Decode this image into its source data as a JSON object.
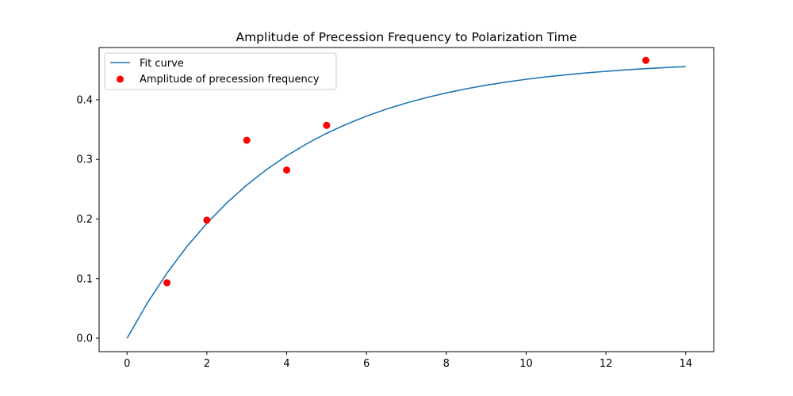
{
  "chart_data": {
    "type": "scatter",
    "title": "Amplitude of Precession Frequency to Polarization Time",
    "xlabel": "",
    "ylabel": "",
    "xlim": [
      -0.7,
      14.7
    ],
    "ylim": [
      -0.0225,
      0.4875
    ],
    "x_ticks": [
      0,
      2,
      4,
      6,
      8,
      10,
      12,
      14
    ],
    "x_tick_labels": [
      "0",
      "2",
      "4",
      "6",
      "8",
      "10",
      "12",
      "14"
    ],
    "y_ticks": [
      0.0,
      0.1,
      0.2,
      0.3,
      0.4
    ],
    "y_tick_labels": [
      "0.0",
      "0.1",
      "0.2",
      "0.3",
      "0.4"
    ],
    "grid": false,
    "legend_position": "upper-left",
    "series": [
      {
        "name": "Fit curve",
        "kind": "line",
        "color": "#1f77b4",
        "x": [
          0,
          0.5,
          1,
          1.5,
          2,
          2.5,
          3,
          3.5,
          4,
          4.5,
          5,
          5.5,
          6,
          6.5,
          7,
          7.5,
          8,
          8.5,
          9,
          9.5,
          10,
          10.5,
          11,
          11.5,
          12,
          12.5,
          13,
          13.5,
          14
        ],
        "y": [
          0.0,
          0.0582,
          0.1092,
          0.1538,
          0.1928,
          0.227,
          0.2569,
          0.2831,
          0.306,
          0.326,
          0.3436,
          0.359,
          0.3724,
          0.3842,
          0.3945,
          0.4035,
          0.4114,
          0.4183,
          0.4243,
          0.4296,
          0.4342,
          0.4383,
          0.4418,
          0.4449,
          0.4476,
          0.45,
          0.4521,
          0.4539,
          0.4555
        ]
      },
      {
        "name": "Amplitude of precession frequency",
        "kind": "scatter",
        "color": "#ff0000",
        "x": [
          1,
          2,
          3,
          4,
          5,
          13
        ],
        "y": [
          0.093,
          0.198,
          0.332,
          0.282,
          0.357,
          0.466
        ]
      }
    ]
  }
}
